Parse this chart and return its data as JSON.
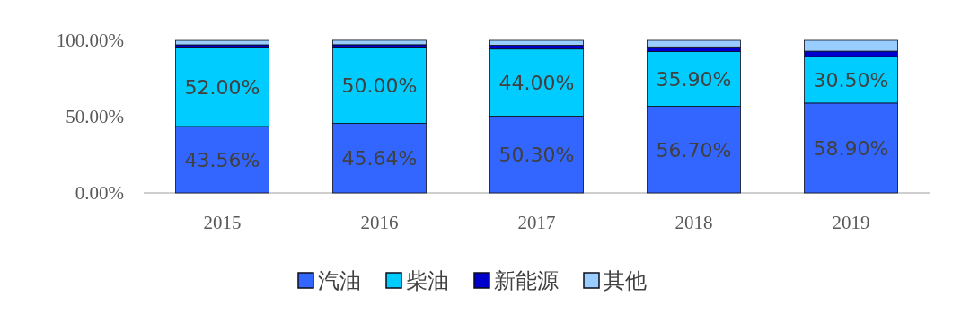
{
  "chart_data": {
    "type": "bar",
    "stacked": true,
    "categories": [
      "2015",
      "2016",
      "2017",
      "2018",
      "2019"
    ],
    "ylim": [
      0,
      100
    ],
    "yticks": [
      {
        "value": 0,
        "label": "0.00%"
      },
      {
        "value": 50,
        "label": "50.00%"
      },
      {
        "value": 100,
        "label": "100.00%"
      }
    ],
    "grid": false,
    "legend": "bottom",
    "series": [
      {
        "name": "汽油",
        "color": "#3366ff",
        "values": [
          43.56,
          45.64,
          50.3,
          56.7,
          58.9
        ],
        "value_labels": [
          "43.56%",
          "45.64%",
          "50.30%",
          "56.70%",
          "58.90%"
        ]
      },
      {
        "name": "柴油",
        "color": "#00ccff",
        "values": [
          52.0,
          50.0,
          44.0,
          35.9,
          30.5
        ],
        "value_labels": [
          "52.00%",
          "50.00%",
          "44.00%",
          "35.90%",
          "30.50%"
        ]
      },
      {
        "name": "新能源",
        "color": "#0000cc",
        "values": [
          1.5,
          1.5,
          2.5,
          3.1,
          3.5
        ]
      },
      {
        "name": "其他",
        "color": "#99ccff",
        "values": [
          2.9,
          2.9,
          3.2,
          4.3,
          7.1
        ]
      }
    ]
  }
}
